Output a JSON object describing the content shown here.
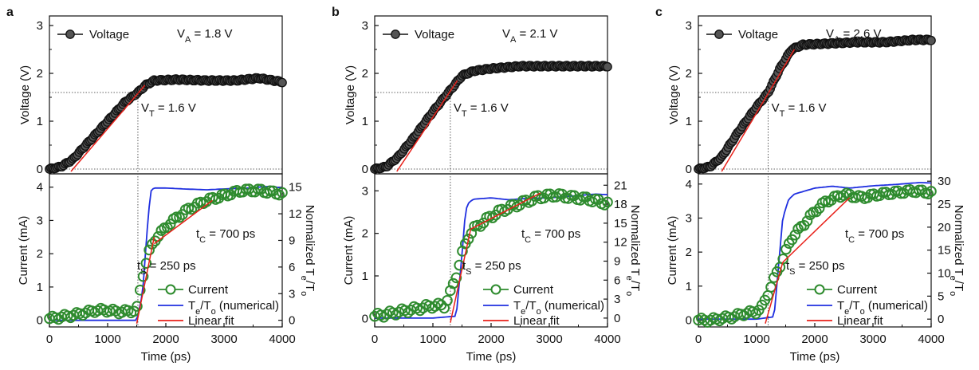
{
  "chart_data": [
    {
      "panel_label": "a",
      "type": "line",
      "top": {
        "type": "scatter",
        "xlim": [
          0,
          4000
        ],
        "ylim": [
          -0.1,
          3.2
        ],
        "yticks": [
          "0",
          "1",
          "2",
          "3"
        ],
        "ylabel": "Voltage (V)",
        "legend": {
          "series": "Voltage",
          "position": "top-left"
        },
        "va_label": "V",
        "va_sub": "A",
        "va_value": " = 1.8 V",
        "vt_label": "V",
        "vt_sub": "T",
        "vt_value": " = 1.6  V",
        "vt": 1.6,
        "t_cross": 1520,
        "voltage_curve": {
          "x": [
            0,
            200,
            400,
            700,
            1000,
            1300,
            1520,
            1650,
            1800,
            2200,
            2700,
            3200,
            3600,
            4000
          ],
          "y": [
            0.0,
            0.05,
            0.2,
            0.6,
            1.0,
            1.4,
            1.6,
            1.75,
            1.85,
            1.87,
            1.85,
            1.85,
            1.9,
            1.82
          ]
        },
        "linear_fit": {
          "x": [
            370,
            1640
          ],
          "y": [
            -0.05,
            1.75
          ]
        }
      },
      "bottom": {
        "xlim": [
          0,
          4000
        ],
        "ylim": [
          -0.2,
          4.4
        ],
        "yticks": [
          "0",
          "1",
          "2",
          "3",
          "4"
        ],
        "ylabel": "Current (mA)",
        "right_ylim": [
          -0.75,
          16.5
        ],
        "right_yticks": [
          "0",
          "3",
          "6",
          "9",
          "12",
          "15"
        ],
        "right_ylabel_main": "Normalized T",
        "right_ylabel_e": "e",
        "right_ylabel_mid": "/T",
        "right_ylabel_o": "o",
        "xticks": [
          "0",
          "1000",
          "2000",
          "3000",
          "4000"
        ],
        "xlabel": "Time (ps)",
        "tc_label": "t",
        "tc_sub": "C",
        "tc_value": " = 700 ps",
        "ts_label": "t",
        "ts_sub": "S",
        "ts_value": " = 250 ps",
        "legend": {
          "position": "bottom-right",
          "current": "Current",
          "te_main": "T",
          "te_e": "e",
          "te_mid": "/T",
          "te_o": "o",
          "te_tail": " (numerical)",
          "fit": "Linear fit"
        },
        "current": {
          "x": [
            0,
            200,
            400,
            600,
            800,
            1000,
            1200,
            1400,
            1500,
            1550,
            1600,
            1700,
            1800,
            2000,
            2200,
            2400,
            2700,
            3000,
            3300,
            3600,
            4000
          ],
          "y": [
            0.05,
            0.1,
            0.15,
            0.22,
            0.3,
            0.3,
            0.25,
            0.28,
            0.3,
            0.8,
            1.3,
            2.0,
            2.4,
            2.8,
            3.1,
            3.35,
            3.6,
            3.75,
            3.9,
            3.9,
            3.8
          ]
        },
        "te_to": {
          "x": [
            0,
            1000,
            1500,
            1600,
            1700,
            1750,
            1800,
            2000,
            2300,
            2700,
            3000,
            3400,
            3800,
            4000
          ],
          "y": [
            0,
            0,
            0,
            3,
            12,
            14.7,
            14.9,
            14.9,
            14.8,
            14.7,
            14.8,
            14.9,
            15.1,
            14.9
          ]
        },
        "linear_fit": [
          {
            "x": [
              1500,
              1800
            ],
            "y": [
              -0.1,
              2.5
            ]
          },
          {
            "x": [
              1800,
              2800
            ],
            "y": [
              2.3,
              3.6
            ]
          }
        ]
      }
    },
    {
      "panel_label": "b",
      "type": "line",
      "top": {
        "type": "scatter",
        "xlim": [
          0,
          4000
        ],
        "ylim": [
          -0.1,
          3.2
        ],
        "yticks": [
          "0",
          "1",
          "2",
          "3"
        ],
        "ylabel": "Voltage (V)",
        "legend": {
          "series": "Voltage",
          "position": "top-left"
        },
        "va_label": "V",
        "va_sub": "A",
        "va_value": " = 2.1 V",
        "vt_label": "V",
        "vt_sub": "T",
        "vt_value": " = 1.6  V",
        "vt": 1.6,
        "t_cross": 1300,
        "voltage_curve": {
          "x": [
            0,
            200,
            400,
            700,
            1000,
            1300,
            1500,
            1700,
            2000,
            2500,
            3000,
            3500,
            4000
          ],
          "y": [
            0.0,
            0.05,
            0.25,
            0.7,
            1.2,
            1.65,
            1.95,
            2.05,
            2.1,
            2.15,
            2.15,
            2.15,
            2.15
          ]
        },
        "linear_fit": {
          "x": [
            380,
            1420
          ],
          "y": [
            -0.05,
            1.85
          ]
        }
      },
      "bottom": {
        "xlim": [
          0,
          4000
        ],
        "ylim": [
          -0.2,
          3.4
        ],
        "yticks": [
          "0",
          "1",
          "2",
          "3"
        ],
        "ylabel": "Current (mA)",
        "right_ylim": [
          -1.4,
          22.8
        ],
        "right_yticks": [
          "0",
          "3",
          "6",
          "9",
          "12",
          "15",
          "18",
          "21"
        ],
        "right_ylabel_main": "Normalized T",
        "right_ylabel_e": "e",
        "right_ylabel_mid": "/T",
        "right_ylabel_o": "o",
        "xticks": [
          "0",
          "1000",
          "2000",
          "3000",
          "4000"
        ],
        "xlabel": "Time (ps)",
        "tc_label": "t",
        "tc_sub": "C",
        "tc_value": " = 700 ps",
        "ts_label": "t",
        "ts_sub": "S",
        "ts_value": " = 250 ps",
        "legend": {
          "position": "bottom-right",
          "current": "Current",
          "te_main": "T",
          "te_e": "e",
          "te_mid": "/T",
          "te_o": "o",
          "te_tail": " (numerical)",
          "fit": "Linear fit"
        },
        "current": {
          "x": [
            0,
            200,
            400,
            600,
            800,
            1000,
            1200,
            1300,
            1400,
            1500,
            1600,
            1700,
            1800,
            2000,
            2200,
            2500,
            2800,
            3100,
            3400,
            3700,
            4000
          ],
          "y": [
            0.05,
            0.1,
            0.15,
            0.2,
            0.25,
            0.3,
            0.3,
            0.6,
            1.0,
            1.5,
            1.9,
            2.1,
            2.2,
            2.4,
            2.55,
            2.7,
            2.85,
            2.9,
            2.85,
            2.8,
            2.7
          ]
        },
        "te_to": {
          "x": [
            0,
            1000,
            1400,
            1500,
            1560,
            1620,
            1700,
            2000,
            2300,
            2600,
            3000,
            3400,
            3800,
            4000
          ],
          "y": [
            0,
            0,
            0.3,
            10,
            17,
            18.3,
            18.8,
            19.0,
            18.7,
            18.9,
            19.0,
            19.3,
            19.6,
            19.5
          ]
        },
        "linear_fit": [
          {
            "x": [
              1300,
              1650
            ],
            "y": [
              -0.1,
              2.1
            ]
          },
          {
            "x": [
              1650,
              2850
            ],
            "y": [
              2.1,
              2.95
            ]
          }
        ]
      }
    },
    {
      "panel_label": "c",
      "type": "line",
      "top": {
        "type": "scatter",
        "xlim": [
          0,
          4000
        ],
        "ylim": [
          -0.1,
          3.2
        ],
        "yticks": [
          "0",
          "1",
          "2",
          "3"
        ],
        "ylabel": "Voltage (V)",
        "legend": {
          "series": "Voltage",
          "position": "top-left"
        },
        "va_label": "V",
        "va_sub": "A",
        "va_value": " = 2.6 V",
        "vt_label": "V",
        "vt_sub": "T",
        "vt_value": " = 1.6  V",
        "vt": 1.6,
        "t_cross": 1200,
        "voltage_curve": {
          "x": [
            0,
            200,
            400,
            700,
            1000,
            1200,
            1400,
            1600,
            1800,
            2200,
            2700,
            3200,
            3700,
            4000
          ],
          "y": [
            0.0,
            0.05,
            0.25,
            0.8,
            1.3,
            1.6,
            2.1,
            2.5,
            2.6,
            2.62,
            2.65,
            2.65,
            2.7,
            2.7
          ]
        },
        "linear_fit": {
          "x": [
            400,
            1650
          ],
          "y": [
            -0.05,
            2.5
          ]
        }
      },
      "bottom": {
        "xlim": [
          0,
          4000
        ],
        "ylim": [
          -0.2,
          4.3
        ],
        "yticks": [
          "0",
          "1",
          "2",
          "3",
          "4"
        ],
        "ylabel": "Current (mA)",
        "right_ylim": [
          -1.7,
          31.6
        ],
        "right_yticks": [
          "0",
          "5",
          "10",
          "15",
          "20",
          "25",
          "30"
        ],
        "right_ylabel_main": "Normalized T",
        "right_ylabel_e": "e",
        "right_ylabel_mid": "/T",
        "right_ylabel_o": "o",
        "xticks": [
          "0",
          "1000",
          "2000",
          "3000",
          "4000"
        ],
        "xlabel": "Time (ps)",
        "tc_label": "t",
        "tc_sub": "C",
        "tc_value": " = 700 ps",
        "ts_label": "t",
        "ts_sub": "S",
        "ts_value": " = 250 ps",
        "legend": {
          "position": "bottom-right",
          "current": "Current",
          "te_main": "T",
          "te_e": "e",
          "te_mid": "/T",
          "te_o": "o",
          "te_tail": " (numerical)",
          "fit": "Linear fit"
        },
        "current": {
          "x": [
            0,
            200,
            400,
            600,
            800,
            1000,
            1100,
            1200,
            1300,
            1400,
            1500,
            1600,
            1800,
            2000,
            2200,
            2500,
            2800,
            3100,
            3400,
            3700,
            4000
          ],
          "y": [
            0.0,
            0.0,
            0.05,
            0.1,
            0.2,
            0.25,
            0.4,
            0.8,
            1.2,
            1.6,
            2.0,
            2.4,
            2.8,
            3.2,
            3.5,
            3.7,
            3.6,
            3.7,
            3.75,
            3.8,
            3.75
          ]
        },
        "te_to": {
          "x": [
            0,
            1000,
            1300,
            1380,
            1450,
            1550,
            1650,
            2000,
            2300,
            2600,
            3000,
            3400,
            3800,
            4000
          ],
          "y": [
            0,
            0,
            0.5,
            12,
            22,
            26,
            27.2,
            28.5,
            28.9,
            28.5,
            29.0,
            29.3,
            29.7,
            29.6
          ]
        },
        "linear_fit": [
          {
            "x": [
              1150,
              1450
            ],
            "y": [
              -0.1,
              1.7
            ]
          },
          {
            "x": [
              1450,
              2600
            ],
            "y": [
              1.7,
              3.6
            ]
          }
        ]
      }
    }
  ],
  "colors": {
    "voltage_marker": "#111111",
    "current_marker": "#2e8b2e",
    "te_line": "#1f2fe0",
    "fit_line": "#e8211a"
  }
}
